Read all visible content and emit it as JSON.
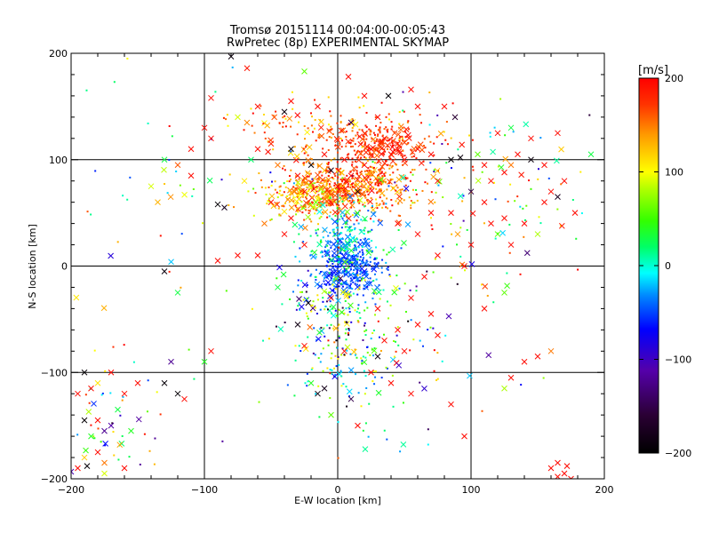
{
  "chart_data": {
    "type": "scatter",
    "title": "Tromsø 20151114 00:04:00-00:05:43",
    "subtitle": "RwPretec (8p) EXPERIMENTAL SKYMAP",
    "xlabel": "E-W location [km]",
    "ylabel": "N-S location [km]",
    "xlim": [
      -200,
      200
    ],
    "ylim": [
      -200,
      200
    ],
    "xticks": [
      -200,
      -100,
      0,
      100,
      200
    ],
    "yticks": [
      -200,
      -100,
      0,
      100,
      200
    ],
    "grid": true,
    "gridlines_x": [
      -100,
      0,
      100
    ],
    "gridlines_y": [
      -100,
      0,
      100
    ],
    "colorbar": {
      "label": "[m/s]",
      "range": [
        -200,
        200
      ],
      "ticks": [
        -200,
        -100,
        0,
        100,
        200
      ],
      "colormap": "black-purple-blue-cyan-green-yellow-orange-red",
      "placement": "right"
    },
    "marker_types": [
      "x (large cross)",
      "dot (small point)"
    ],
    "points": [
      {
        "x": -95,
        "y": 158,
        "v": 195,
        "m": "x"
      },
      {
        "x": -80,
        "y": 197,
        "v": -190,
        "m": "x"
      },
      {
        "x": -68,
        "y": 186,
        "v": 190,
        "m": "x"
      },
      {
        "x": -40,
        "y": 145,
        "v": -190,
        "m": "x"
      },
      {
        "x": -25,
        "y": 183,
        "v": 60,
        "m": "x"
      },
      {
        "x": 8,
        "y": 178,
        "v": 195,
        "m": "x"
      },
      {
        "x": 20,
        "y": 160,
        "v": 195,
        "m": "x"
      },
      {
        "x": 38,
        "y": 160,
        "v": -195,
        "m": "x"
      },
      {
        "x": 55,
        "y": 166,
        "v": 195,
        "m": "x"
      },
      {
        "x": 80,
        "y": 150,
        "v": 195,
        "m": "x"
      },
      {
        "x": 88,
        "y": 140,
        "v": -160,
        "m": "x"
      },
      {
        "x": -60,
        "y": 150,
        "v": 190,
        "m": "x"
      },
      {
        "x": -75,
        "y": 140,
        "v": 90,
        "m": "x"
      },
      {
        "x": 120,
        "y": 125,
        "v": 195,
        "m": "x"
      },
      {
        "x": 130,
        "y": 130,
        "v": 30,
        "m": "x"
      },
      {
        "x": 145,
        "y": 120,
        "v": 195,
        "m": "x"
      },
      {
        "x": 165,
        "y": 125,
        "v": 195,
        "m": "x"
      },
      {
        "x": -130,
        "y": 100,
        "v": 30,
        "m": "x"
      },
      {
        "x": -120,
        "y": 95,
        "v": 160,
        "m": "x"
      },
      {
        "x": -110,
        "y": 110,
        "v": 195,
        "m": "x"
      },
      {
        "x": -95,
        "y": 120,
        "v": 195,
        "m": "x"
      },
      {
        "x": -140,
        "y": 75,
        "v": 90,
        "m": "x"
      },
      {
        "x": -135,
        "y": 60,
        "v": 130,
        "m": "x"
      },
      {
        "x": -90,
        "y": 58,
        "v": -195,
        "m": "x"
      },
      {
        "x": -85,
        "y": 55,
        "v": -180,
        "m": "x"
      },
      {
        "x": -70,
        "y": 80,
        "v": 110,
        "m": "x"
      },
      {
        "x": -65,
        "y": 100,
        "v": 20,
        "m": "x"
      },
      {
        "x": -60,
        "y": 110,
        "v": 195,
        "m": "x"
      },
      {
        "x": -50,
        "y": 115,
        "v": 180,
        "m": "x"
      },
      {
        "x": -45,
        "y": 95,
        "v": 150,
        "m": "x"
      },
      {
        "x": -35,
        "y": 110,
        "v": -190,
        "m": "x"
      },
      {
        "x": -30,
        "y": 85,
        "v": 195,
        "m": "x"
      },
      {
        "x": -25,
        "y": 70,
        "v": 195,
        "m": "x"
      },
      {
        "x": -20,
        "y": 95,
        "v": -195,
        "m": "x"
      },
      {
        "x": -15,
        "y": 80,
        "v": 140,
        "m": "x"
      },
      {
        "x": -10,
        "y": 105,
        "v": 195,
        "m": "x"
      },
      {
        "x": -5,
        "y": 90,
        "v": -185,
        "m": "x"
      },
      {
        "x": 0,
        "y": 75,
        "v": 195,
        "m": "x"
      },
      {
        "x": 5,
        "y": 100,
        "v": 195,
        "m": "x"
      },
      {
        "x": 10,
        "y": 85,
        "v": 195,
        "m": "x"
      },
      {
        "x": 15,
        "y": 70,
        "v": -180,
        "m": "x"
      },
      {
        "x": 20,
        "y": 95,
        "v": 195,
        "m": "x"
      },
      {
        "x": 25,
        "y": 110,
        "v": 195,
        "m": "x"
      },
      {
        "x": 30,
        "y": 80,
        "v": 195,
        "m": "x"
      },
      {
        "x": 35,
        "y": 120,
        "v": 195,
        "m": "x"
      },
      {
        "x": 40,
        "y": 105,
        "v": 195,
        "m": "x"
      },
      {
        "x": 45,
        "y": 115,
        "v": 185,
        "m": "x"
      },
      {
        "x": 50,
        "y": 100,
        "v": 195,
        "m": "x"
      },
      {
        "x": 60,
        "y": 110,
        "v": 195,
        "m": "x"
      },
      {
        "x": 70,
        "y": 105,
        "v": 195,
        "m": "x"
      },
      {
        "x": 75,
        "y": 80,
        "v": 195,
        "m": "x"
      },
      {
        "x": 85,
        "y": 100,
        "v": -195,
        "m": "x"
      },
      {
        "x": 92,
        "y": 102,
        "v": -190,
        "m": "x"
      },
      {
        "x": 100,
        "y": 70,
        "v": -150,
        "m": "x"
      },
      {
        "x": 105,
        "y": 105,
        "v": 60,
        "m": "x"
      },
      {
        "x": 110,
        "y": 95,
        "v": 195,
        "m": "x"
      },
      {
        "x": 115,
        "y": 80,
        "v": 195,
        "m": "x"
      },
      {
        "x": 125,
        "y": 88,
        "v": 195,
        "m": "x"
      },
      {
        "x": 130,
        "y": 95,
        "v": 150,
        "m": "x"
      },
      {
        "x": 135,
        "y": 105,
        "v": 195,
        "m": "x"
      },
      {
        "x": 145,
        "y": 100,
        "v": -190,
        "m": "x"
      },
      {
        "x": 155,
        "y": 95,
        "v": 195,
        "m": "x"
      },
      {
        "x": 160,
        "y": 70,
        "v": 195,
        "m": "x"
      },
      {
        "x": 165,
        "y": 65,
        "v": -175,
        "m": "x"
      },
      {
        "x": 170,
        "y": 80,
        "v": 195,
        "m": "x"
      },
      {
        "x": 178,
        "y": 50,
        "v": 195,
        "m": "x"
      },
      {
        "x": 190,
        "y": 105,
        "v": 30,
        "m": "x"
      },
      {
        "x": 110,
        "y": 60,
        "v": 195,
        "m": "x"
      },
      {
        "x": 115,
        "y": 40,
        "v": 195,
        "m": "x"
      },
      {
        "x": 120,
        "y": 30,
        "v": 60,
        "m": "x"
      },
      {
        "x": 125,
        "y": 45,
        "v": 195,
        "m": "x"
      },
      {
        "x": 130,
        "y": 20,
        "v": 195,
        "m": "x"
      },
      {
        "x": 140,
        "y": 40,
        "v": 195,
        "m": "x"
      },
      {
        "x": 150,
        "y": 30,
        "v": 80,
        "m": "x"
      },
      {
        "x": 155,
        "y": 60,
        "v": 195,
        "m": "x"
      },
      {
        "x": 100,
        "y": 20,
        "v": 195,
        "m": "x"
      },
      {
        "x": 95,
        "y": 0,
        "v": 195,
        "m": "x"
      },
      {
        "x": 90,
        "y": 30,
        "v": 140,
        "m": "x"
      },
      {
        "x": 85,
        "y": 50,
        "v": 195,
        "m": "x"
      },
      {
        "x": 75,
        "y": 10,
        "v": 195,
        "m": "x"
      },
      {
        "x": 65,
        "y": -10,
        "v": 195,
        "m": "x"
      },
      {
        "x": 55,
        "y": -30,
        "v": 195,
        "m": "x"
      },
      {
        "x": 60,
        "y": -55,
        "v": 195,
        "m": "x"
      },
      {
        "x": 70,
        "y": -45,
        "v": 195,
        "m": "x"
      },
      {
        "x": 75,
        "y": -65,
        "v": 195,
        "m": "x"
      },
      {
        "x": 45,
        "y": -60,
        "v": 195,
        "m": "x"
      },
      {
        "x": 35,
        "y": -70,
        "v": 195,
        "m": "x"
      },
      {
        "x": 50,
        "y": -80,
        "v": 195,
        "m": "x"
      },
      {
        "x": 30,
        "y": -85,
        "v": -185,
        "m": "x"
      },
      {
        "x": 25,
        "y": -100,
        "v": 195,
        "m": "x"
      },
      {
        "x": 40,
        "y": -110,
        "v": 195,
        "m": "x"
      },
      {
        "x": 55,
        "y": -120,
        "v": 195,
        "m": "x"
      },
      {
        "x": 85,
        "y": -130,
        "v": 195,
        "m": "x"
      },
      {
        "x": 95,
        "y": -160,
        "v": 195,
        "m": "x"
      },
      {
        "x": 110,
        "y": -40,
        "v": 195,
        "m": "x"
      },
      {
        "x": 125,
        "y": -25,
        "v": 60,
        "m": "x"
      },
      {
        "x": 140,
        "y": -90,
        "v": 195,
        "m": "x"
      },
      {
        "x": 150,
        "y": -85,
        "v": 195,
        "m": "x"
      },
      {
        "x": 160,
        "y": -80,
        "v": 150,
        "m": "x"
      },
      {
        "x": 130,
        "y": -105,
        "v": 195,
        "m": "x"
      },
      {
        "x": 125,
        "y": -115,
        "v": 80,
        "m": "x"
      },
      {
        "x": 160,
        "y": -190,
        "v": 195,
        "m": "x"
      },
      {
        "x": 165,
        "y": -185,
        "v": 195,
        "m": "x"
      },
      {
        "x": 170,
        "y": -195,
        "v": 195,
        "m": "x"
      },
      {
        "x": 175,
        "y": -200,
        "v": 195,
        "m": "x"
      },
      {
        "x": 165,
        "y": -198,
        "v": 195,
        "m": "x"
      },
      {
        "x": 172,
        "y": -188,
        "v": 195,
        "m": "x"
      },
      {
        "x": -30,
        "y": -55,
        "v": -185,
        "m": "x"
      },
      {
        "x": -25,
        "y": -75,
        "v": 195,
        "m": "x"
      },
      {
        "x": -15,
        "y": -120,
        "v": -190,
        "m": "x"
      },
      {
        "x": -10,
        "y": -115,
        "v": -180,
        "m": "x"
      },
      {
        "x": -20,
        "y": -110,
        "v": 40,
        "m": "x"
      },
      {
        "x": -5,
        "y": -140,
        "v": 60,
        "m": "x"
      },
      {
        "x": 10,
        "y": -125,
        "v": -150,
        "m": "x"
      },
      {
        "x": 15,
        "y": -150,
        "v": 195,
        "m": "x"
      },
      {
        "x": -45,
        "y": -20,
        "v": 30,
        "m": "x"
      },
      {
        "x": -60,
        "y": 10,
        "v": 195,
        "m": "x"
      },
      {
        "x": -75,
        "y": 10,
        "v": 195,
        "m": "x"
      },
      {
        "x": -90,
        "y": 5,
        "v": 195,
        "m": "x"
      },
      {
        "x": -130,
        "y": -5,
        "v": -190,
        "m": "x"
      },
      {
        "x": -120,
        "y": -25,
        "v": 30,
        "m": "x"
      },
      {
        "x": -120,
        "y": -120,
        "v": -195,
        "m": "x"
      },
      {
        "x": -115,
        "y": -125,
        "v": 195,
        "m": "x"
      },
      {
        "x": -130,
        "y": -110,
        "v": -195,
        "m": "x"
      },
      {
        "x": -150,
        "y": -110,
        "v": 195,
        "m": "x"
      },
      {
        "x": -160,
        "y": -120,
        "v": 195,
        "m": "x"
      },
      {
        "x": -165,
        "y": -135,
        "v": 30,
        "m": "x"
      },
      {
        "x": -170,
        "y": -150,
        "v": -110,
        "m": "x"
      },
      {
        "x": -175,
        "y": -155,
        "v": -120,
        "m": "x"
      },
      {
        "x": -180,
        "y": -145,
        "v": 195,
        "m": "x"
      },
      {
        "x": -185,
        "y": -115,
        "v": 195,
        "m": "x"
      },
      {
        "x": -190,
        "y": -100,
        "v": -195,
        "m": "x"
      },
      {
        "x": -195,
        "y": -120,
        "v": 195,
        "m": "x"
      },
      {
        "x": -190,
        "y": -145,
        "v": -195,
        "m": "x"
      },
      {
        "x": -185,
        "y": -160,
        "v": 40,
        "m": "x"
      },
      {
        "x": -180,
        "y": -175,
        "v": 195,
        "m": "x"
      },
      {
        "x": -175,
        "y": -185,
        "v": 150,
        "m": "x"
      },
      {
        "x": -195,
        "y": -190,
        "v": 195,
        "m": "x"
      },
      {
        "x": -188,
        "y": -188,
        "v": -195,
        "m": "x"
      },
      {
        "x": -160,
        "y": -190,
        "v": 195,
        "m": "x"
      },
      {
        "x": -170,
        "y": -100,
        "v": 195,
        "m": "x"
      },
      {
        "x": -180,
        "y": -110,
        "v": 110,
        "m": "x"
      },
      {
        "x": -155,
        "y": -155,
        "v": 40,
        "m": "x"
      },
      {
        "x": -175,
        "y": -195,
        "v": 90,
        "m": "x"
      },
      {
        "x": -190,
        "y": -180,
        "v": 120,
        "m": "x"
      },
      {
        "x": -100,
        "y": -90,
        "v": 40,
        "m": "x"
      },
      {
        "x": -125,
        "y": -90,
        "v": -120,
        "m": "x"
      },
      {
        "x": -95,
        "y": -80,
        "v": 195,
        "m": "x"
      },
      {
        "x": -5,
        "y": -30,
        "v": 195,
        "m": "x"
      },
      {
        "x": 30,
        "y": -40,
        "v": 195,
        "m": "x"
      },
      {
        "x": 5,
        "y": -80,
        "v": 195,
        "m": "x"
      },
      {
        "x": 60,
        "y": 150,
        "v": 195,
        "m": "x"
      },
      {
        "x": -15,
        "y": 150,
        "v": 195,
        "m": "x"
      },
      {
        "x": -35,
        "y": 155,
        "v": 195,
        "m": "x"
      },
      {
        "x": 10,
        "y": 135,
        "v": -150,
        "m": "x"
      },
      {
        "x": 30,
        "y": 140,
        "v": 195,
        "m": "x"
      },
      {
        "x": -100,
        "y": 130,
        "v": 195,
        "m": "x"
      },
      {
        "x": -110,
        "y": 85,
        "v": 195,
        "m": "x"
      },
      {
        "x": -35,
        "y": 45,
        "v": 195,
        "m": "x"
      },
      {
        "x": -40,
        "y": 30,
        "v": 195,
        "m": "x"
      },
      {
        "x": -25,
        "y": 20,
        "v": 195,
        "m": "x"
      },
      {
        "x": -50,
        "y": 60,
        "v": 195,
        "m": "x"
      },
      {
        "x": -55,
        "y": 40,
        "v": 150,
        "m": "x"
      },
      {
        "x": 45,
        "y": 40,
        "v": 195,
        "m": "x"
      },
      {
        "x": 60,
        "y": 30,
        "v": 195,
        "m": "x"
      },
      {
        "x": 70,
        "y": 50,
        "v": 195,
        "m": "x"
      }
    ],
    "clusters": [
      {
        "cx": 5,
        "cy": 75,
        "sx": 25,
        "sy": 13,
        "n": 520,
        "vmin": 120,
        "vmax": 200,
        "m": "."
      },
      {
        "cx": -20,
        "cy": 65,
        "sx": 18,
        "sy": 10,
        "n": 180,
        "vmin": 60,
        "vmax": 180,
        "m": "."
      },
      {
        "cx": 30,
        "cy": 115,
        "sx": 20,
        "sy": 10,
        "n": 220,
        "vmin": 150,
        "vmax": 200,
        "m": "."
      },
      {
        "cx": -10,
        "cy": 130,
        "sx": 40,
        "sy": 12,
        "n": 120,
        "vmin": 100,
        "vmax": 200,
        "m": "."
      },
      {
        "cx": 8,
        "cy": 0,
        "sx": 12,
        "sy": 14,
        "n": 320,
        "vmin": -70,
        "vmax": -30,
        "m": "."
      },
      {
        "cx": 5,
        "cy": 30,
        "sx": 16,
        "sy": 15,
        "n": 150,
        "vmin": -50,
        "vmax": 50,
        "m": "."
      },
      {
        "cx": 0,
        "cy": -30,
        "sx": 25,
        "sy": 15,
        "n": 120,
        "vmin": -80,
        "vmax": 120,
        "m": "."
      },
      {
        "cx": 10,
        "cy": -100,
        "sx": 25,
        "sy": 30,
        "n": 110,
        "vmin": -60,
        "vmax": 120,
        "m": "."
      },
      {
        "cx": -5,
        "cy": -65,
        "sx": 20,
        "sy": 20,
        "n": 60,
        "vmin": -200,
        "vmax": 200,
        "m": "."
      },
      {
        "cx": 90,
        "cy": 95,
        "sx": 35,
        "sy": 30,
        "n": 60,
        "vmin": -150,
        "vmax": 200,
        "m": "."
      },
      {
        "cx": 120,
        "cy": 40,
        "sx": 40,
        "sy": 35,
        "n": 50,
        "vmin": 0,
        "vmax": 200,
        "m": "."
      },
      {
        "cx": -170,
        "cy": -140,
        "sx": 20,
        "sy": 35,
        "n": 50,
        "vmin": -120,
        "vmax": 200,
        "m": "."
      },
      {
        "cx": -120,
        "cy": 60,
        "sx": 50,
        "sy": 60,
        "n": 40,
        "vmin": -100,
        "vmax": 200,
        "m": "."
      },
      {
        "cx": 60,
        "cy": -60,
        "sx": 40,
        "sy": 40,
        "n": 40,
        "vmin": -200,
        "vmax": 200,
        "m": "."
      },
      {
        "cx": 0,
        "cy": 0,
        "sx": 120,
        "sy": 120,
        "n": 50,
        "vmin": -200,
        "vmax": 200,
        "m": "."
      }
    ]
  }
}
